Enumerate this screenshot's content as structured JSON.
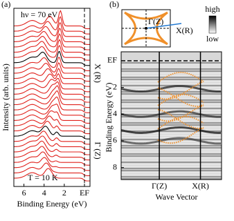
{
  "chart_data": [
    {
      "type": "line",
      "panel": "(a)",
      "xlabel": "Binding Energy (eV)",
      "ylabel": "Intensity (arb. units)",
      "annotations": [
        "hν = 70 eV",
        "T = 10 K",
        "X (R)",
        "Γ (Z)"
      ],
      "xlim": [
        7,
        -0.55
      ],
      "xticks": [
        6,
        4,
        2,
        {
          "value": 0,
          "label": "EF"
        }
      ]
    },
    {
      "type": "heatmap",
      "panel": "(b)",
      "xlabel": "Wave Vector",
      "ylabel": "Binding Energy (eV)",
      "categories": [
        "Γ(Z)",
        "X(R)"
      ],
      "ylim": [
        -0.67,
        8.9
      ],
      "yticks": [
        {
          "value": 0,
          "label": "EF"
        },
        2,
        4,
        6,
        8
      ],
      "colorbar": [
        "high",
        "low"
      ],
      "inset_labels": [
        "Γ(Z)",
        "X(R)"
      ]
    }
  ]
}
